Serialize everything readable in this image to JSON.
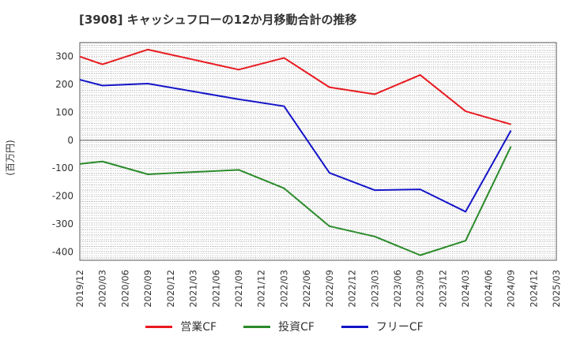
{
  "chart_data": {
    "type": "line",
    "title": "[3908]  キャッシュフローの12か月移動合計の推移",
    "ylabel": "(百万円)",
    "xlabel": "",
    "ylim": [
      -430,
      350
    ],
    "yticks": [
      300,
      200,
      100,
      0,
      -100,
      -200,
      -300,
      -400
    ],
    "categories": [
      "2019/12",
      "2020/03",
      "2020/06",
      "2020/09",
      "2020/12",
      "2021/03",
      "2021/06",
      "2021/09",
      "2021/12",
      "2022/03",
      "2022/06",
      "2022/09",
      "2022/12",
      "2023/03",
      "2023/06",
      "2023/09",
      "2023/12",
      "2024/03",
      "2024/06",
      "2024/09",
      "2024/12",
      "2025/03"
    ],
    "series": [
      {
        "name": "営業CF",
        "color": "#e8191f",
        "values": [
          300,
          272,
          null,
          325,
          null,
          null,
          null,
          253,
          null,
          295,
          null,
          190,
          null,
          165,
          null,
          234,
          null,
          104,
          null,
          57,
          null,
          null
        ]
      },
      {
        "name": "投資CF",
        "color": "#2a8a2a",
        "values": [
          -85,
          -76,
          null,
          -122,
          null,
          null,
          null,
          -106,
          null,
          -172,
          null,
          -308,
          null,
          -345,
          null,
          -412,
          null,
          -360,
          null,
          -22,
          null,
          null
        ]
      },
      {
        "name": "フリーCF",
        "color": "#1414c8",
        "values": [
          217,
          196,
          null,
          203,
          null,
          null,
          null,
          147,
          null,
          122,
          null,
          -117,
          null,
          -179,
          null,
          -176,
          null,
          -256,
          null,
          35,
          null,
          null
        ]
      }
    ],
    "grid": true,
    "legend_position": "bottom"
  }
}
